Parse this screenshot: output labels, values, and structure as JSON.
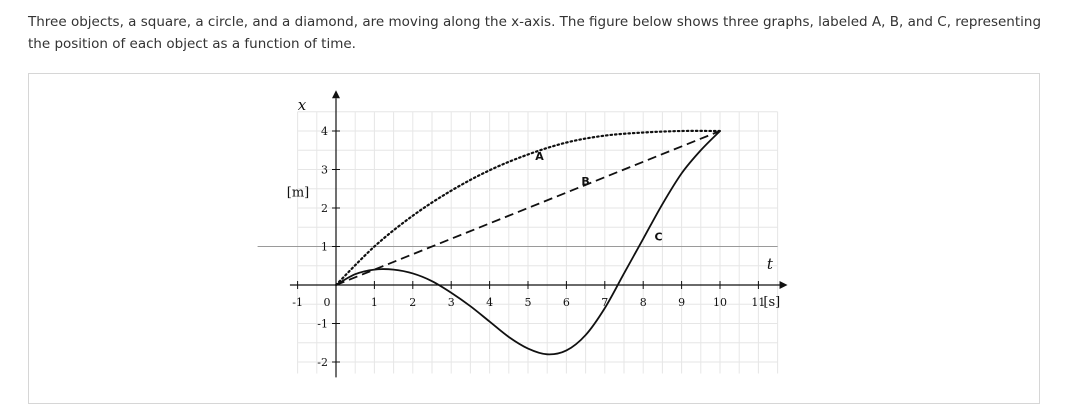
{
  "question": {
    "text": "Three objects, a square, a circle, and a diamond, are moving along the x-axis. The figure below shows three graphs, labeled A, B, and C, representing the position of each object as a function of time."
  },
  "colors": {
    "ink": "#111111",
    "grid": "#e6e6e6",
    "panel_border": "#d6d6d6",
    "text": "#333333"
  },
  "chart_data": {
    "type": "line",
    "xlabel": "t",
    "xunit": "[s]",
    "ylabel": "x",
    "yunit": "[m]",
    "xlim": [
      -1,
      11.5
    ],
    "ylim": [
      -2.3,
      4.5
    ],
    "x_ticks": [
      "-1",
      "0",
      "1",
      "2",
      "3",
      "4",
      "5",
      "6",
      "7",
      "8",
      "9",
      "10",
      "11"
    ],
    "y_ticks": [
      "-2",
      "-1",
      "1",
      "2",
      "3",
      "4"
    ],
    "grid": true,
    "series": [
      {
        "name": "A",
        "style": "dotted",
        "points": [
          [
            0,
            0
          ],
          [
            1,
            1.0
          ],
          [
            2,
            1.8
          ],
          [
            3,
            2.45
          ],
          [
            4,
            2.98
          ],
          [
            5,
            3.39
          ],
          [
            6,
            3.7
          ],
          [
            7,
            3.88
          ],
          [
            8,
            3.96
          ],
          [
            9,
            4.0
          ],
          [
            10,
            4.0
          ]
        ]
      },
      {
        "name": "B",
        "style": "dashed",
        "points": [
          [
            0,
            0
          ],
          [
            10,
            4
          ]
        ]
      },
      {
        "name": "C",
        "style": "solid",
        "points": [
          [
            0,
            0
          ],
          [
            0.5,
            0.28
          ],
          [
            1,
            0.4
          ],
          [
            1.5,
            0.4
          ],
          [
            2,
            0.3
          ],
          [
            2.5,
            0.1
          ],
          [
            3,
            -0.2
          ],
          [
            3.5,
            -0.55
          ],
          [
            4,
            -0.95
          ],
          [
            4.5,
            -1.35
          ],
          [
            5,
            -1.65
          ],
          [
            5.5,
            -1.8
          ],
          [
            6,
            -1.7
          ],
          [
            6.5,
            -1.3
          ],
          [
            7,
            -0.6
          ],
          [
            7.5,
            0.3
          ],
          [
            8,
            1.2
          ],
          [
            8.5,
            2.1
          ],
          [
            9,
            2.9
          ],
          [
            9.5,
            3.5
          ],
          [
            10,
            4.0
          ]
        ]
      }
    ]
  }
}
